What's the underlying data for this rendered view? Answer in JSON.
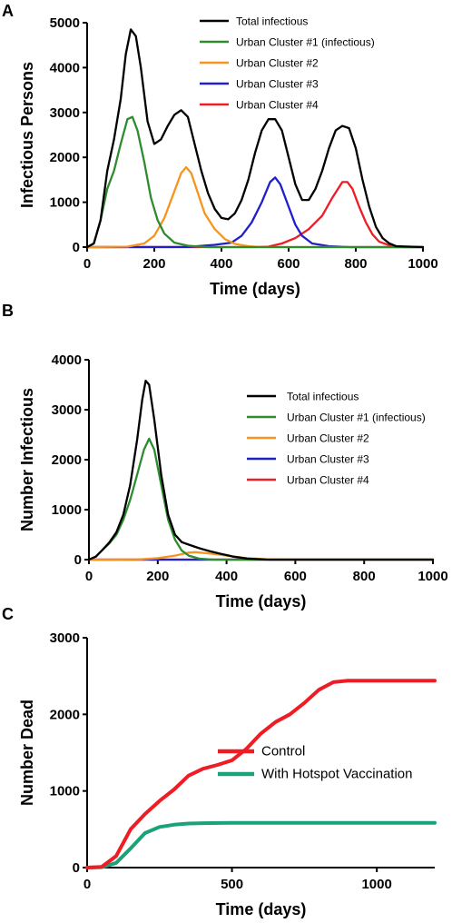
{
  "panels": [
    {
      "letter": "A",
      "xlabel": "Time (days)",
      "ylabel": "Infectious Persons"
    },
    {
      "letter": "B",
      "xlabel": "Time (days)",
      "ylabel": "Number Infectious"
    },
    {
      "letter": "C",
      "xlabel": "Time (days)",
      "ylabel": "Number Dead"
    }
  ],
  "chart_data": [
    {
      "type": "line",
      "panel": "A",
      "xlabel": "Time (days)",
      "ylabel": "Infectious Persons",
      "xlim": [
        0,
        1000
      ],
      "ylim": [
        0,
        5000
      ],
      "xticks": [
        0,
        200,
        400,
        600,
        800,
        1000
      ],
      "yticks": [
        0,
        1000,
        2000,
        3000,
        4000,
        5000
      ],
      "legend_position": "top-right",
      "series": [
        {
          "name": "Total infectious",
          "color": "#000000",
          "points": [
            [
              0,
              0
            ],
            [
              20,
              80
            ],
            [
              40,
              600
            ],
            [
              60,
              1700
            ],
            [
              80,
              2400
            ],
            [
              100,
              3300
            ],
            [
              115,
              4300
            ],
            [
              130,
              4850
            ],
            [
              145,
              4700
            ],
            [
              160,
              4000
            ],
            [
              180,
              2800
            ],
            [
              200,
              2300
            ],
            [
              220,
              2400
            ],
            [
              240,
              2700
            ],
            [
              260,
              2950
            ],
            [
              280,
              3050
            ],
            [
              300,
              2900
            ],
            [
              320,
              2300
            ],
            [
              340,
              1700
            ],
            [
              360,
              1200
            ],
            [
              380,
              850
            ],
            [
              400,
              650
            ],
            [
              420,
              620
            ],
            [
              440,
              750
            ],
            [
              460,
              1050
            ],
            [
              480,
              1500
            ],
            [
              500,
              2100
            ],
            [
              520,
              2600
            ],
            [
              540,
              2850
            ],
            [
              560,
              2850
            ],
            [
              580,
              2600
            ],
            [
              600,
              2000
            ],
            [
              620,
              1400
            ],
            [
              640,
              1050
            ],
            [
              660,
              1050
            ],
            [
              680,
              1300
            ],
            [
              700,
              1700
            ],
            [
              720,
              2200
            ],
            [
              740,
              2600
            ],
            [
              760,
              2700
            ],
            [
              780,
              2650
            ],
            [
              800,
              2200
            ],
            [
              820,
              1500
            ],
            [
              840,
              900
            ],
            [
              860,
              450
            ],
            [
              880,
              200
            ],
            [
              900,
              80
            ],
            [
              920,
              20
            ],
            [
              1000,
              0
            ]
          ]
        },
        {
          "name": "Urban Cluster #1 (infectious)",
          "color": "#2e8b2e",
          "points": [
            [
              0,
              0
            ],
            [
              20,
              80
            ],
            [
              40,
              600
            ],
            [
              60,
              1300
            ],
            [
              80,
              1700
            ],
            [
              100,
              2300
            ],
            [
              120,
              2850
            ],
            [
              135,
              2900
            ],
            [
              150,
              2600
            ],
            [
              170,
              1900
            ],
            [
              190,
              1100
            ],
            [
              210,
              600
            ],
            [
              230,
              300
            ],
            [
              260,
              100
            ],
            [
              300,
              30
            ],
            [
              360,
              0
            ],
            [
              1000,
              0
            ]
          ]
        },
        {
          "name": "Urban Cluster #2",
          "color": "#f7941d",
          "points": [
            [
              0,
              0
            ],
            [
              120,
              10
            ],
            [
              170,
              80
            ],
            [
              200,
              250
            ],
            [
              230,
              650
            ],
            [
              255,
              1150
            ],
            [
              280,
              1650
            ],
            [
              295,
              1780
            ],
            [
              310,
              1650
            ],
            [
              330,
              1200
            ],
            [
              350,
              750
            ],
            [
              380,
              400
            ],
            [
              410,
              180
            ],
            [
              440,
              70
            ],
            [
              480,
              20
            ],
            [
              520,
              0
            ],
            [
              1000,
              0
            ]
          ]
        },
        {
          "name": "Urban Cluster #3",
          "color": "#1f1fcc",
          "points": [
            [
              0,
              0
            ],
            [
              300,
              5
            ],
            [
              380,
              50
            ],
            [
              430,
              100
            ],
            [
              460,
              250
            ],
            [
              490,
              550
            ],
            [
              520,
              1000
            ],
            [
              545,
              1450
            ],
            [
              560,
              1550
            ],
            [
              575,
              1400
            ],
            [
              600,
              900
            ],
            [
              620,
              500
            ],
            [
              640,
              250
            ],
            [
              670,
              80
            ],
            [
              720,
              20
            ],
            [
              780,
              0
            ],
            [
              1000,
              0
            ]
          ]
        },
        {
          "name": "Urban Cluster #4",
          "color": "#ee1c24",
          "points": [
            [
              0,
              0
            ],
            [
              500,
              0
            ],
            [
              540,
              10
            ],
            [
              580,
              80
            ],
            [
              620,
              200
            ],
            [
              660,
              400
            ],
            [
              700,
              700
            ],
            [
              730,
              1100
            ],
            [
              760,
              1450
            ],
            [
              775,
              1450
            ],
            [
              790,
              1300
            ],
            [
              810,
              900
            ],
            [
              830,
              550
            ],
            [
              850,
              280
            ],
            [
              870,
              120
            ],
            [
              900,
              40
            ],
            [
              940,
              0
            ],
            [
              1000,
              0
            ]
          ]
        }
      ]
    },
    {
      "type": "line",
      "panel": "B",
      "xlabel": "Time (days)",
      "ylabel": "Number Infectious",
      "xlim": [
        0,
        1000
      ],
      "ylim": [
        0,
        4000
      ],
      "xticks": [
        0,
        200,
        400,
        600,
        800,
        1000
      ],
      "yticks": [
        0,
        1000,
        2000,
        3000,
        4000
      ],
      "legend_position": "right",
      "series": [
        {
          "name": "Total infectious",
          "color": "#000000",
          "points": [
            [
              0,
              0
            ],
            [
              20,
              60
            ],
            [
              40,
              200
            ],
            [
              60,
              350
            ],
            [
              80,
              550
            ],
            [
              100,
              900
            ],
            [
              120,
              1500
            ],
            [
              140,
              2400
            ],
            [
              155,
              3200
            ],
            [
              165,
              3580
            ],
            [
              175,
              3500
            ],
            [
              190,
              2800
            ],
            [
              210,
              1700
            ],
            [
              230,
              900
            ],
            [
              250,
              500
            ],
            [
              270,
              350
            ],
            [
              290,
              300
            ],
            [
              320,
              230
            ],
            [
              350,
              170
            ],
            [
              380,
              120
            ],
            [
              420,
              60
            ],
            [
              460,
              20
            ],
            [
              520,
              0
            ],
            [
              1000,
              0
            ]
          ]
        },
        {
          "name": "Urban Cluster #1 (infectious)",
          "color": "#2e8b2e",
          "points": [
            [
              0,
              0
            ],
            [
              20,
              60
            ],
            [
              40,
              200
            ],
            [
              60,
              330
            ],
            [
              80,
              500
            ],
            [
              100,
              800
            ],
            [
              120,
              1200
            ],
            [
              140,
              1700
            ],
            [
              160,
              2200
            ],
            [
              175,
              2420
            ],
            [
              190,
              2200
            ],
            [
              210,
              1500
            ],
            [
              230,
              800
            ],
            [
              250,
              400
            ],
            [
              270,
              180
            ],
            [
              290,
              80
            ],
            [
              320,
              20
            ],
            [
              360,
              0
            ],
            [
              1000,
              0
            ]
          ]
        },
        {
          "name": "Urban Cluster #2",
          "color": "#f7941d",
          "points": [
            [
              0,
              0
            ],
            [
              150,
              5
            ],
            [
              200,
              30
            ],
            [
              250,
              80
            ],
            [
              290,
              140
            ],
            [
              310,
              150
            ],
            [
              340,
              130
            ],
            [
              380,
              100
            ],
            [
              420,
              60
            ],
            [
              460,
              30
            ],
            [
              520,
              5
            ],
            [
              600,
              0
            ],
            [
              1000,
              0
            ]
          ]
        },
        {
          "name": "Urban Cluster #3",
          "color": "#1f1fcc",
          "points": [
            [
              0,
              0
            ],
            [
              1000,
              0
            ]
          ]
        },
        {
          "name": "Urban Cluster #4",
          "color": "#ee1c24",
          "points": [
            [
              0,
              0
            ],
            [
              1000,
              0
            ]
          ]
        }
      ]
    },
    {
      "type": "line",
      "panel": "C",
      "xlabel": "Time (days)",
      "ylabel": "Number Dead",
      "xlim": [
        0,
        1200
      ],
      "ylim": [
        0,
        3000
      ],
      "xticks": [
        0,
        500,
        1000
      ],
      "yticks": [
        0,
        1000,
        2000,
        3000
      ],
      "legend_position": "center-right",
      "series": [
        {
          "name": "Control",
          "color": "#ee1c24",
          "points": [
            [
              0,
              0
            ],
            [
              50,
              10
            ],
            [
              100,
              150
            ],
            [
              150,
              500
            ],
            [
              200,
              700
            ],
            [
              250,
              870
            ],
            [
              300,
              1020
            ],
            [
              350,
              1200
            ],
            [
              400,
              1290
            ],
            [
              450,
              1340
            ],
            [
              500,
              1400
            ],
            [
              550,
              1550
            ],
            [
              600,
              1750
            ],
            [
              650,
              1900
            ],
            [
              700,
              2000
            ],
            [
              750,
              2150
            ],
            [
              800,
              2320
            ],
            [
              850,
              2420
            ],
            [
              900,
              2440
            ],
            [
              1200,
              2440
            ]
          ]
        },
        {
          "name": "With Hotspot Vaccination",
          "color": "#1aa37a",
          "points": [
            [
              0,
              0
            ],
            [
              50,
              5
            ],
            [
              100,
              60
            ],
            [
              150,
              250
            ],
            [
              200,
              450
            ],
            [
              250,
              530
            ],
            [
              300,
              560
            ],
            [
              350,
              575
            ],
            [
              400,
              580
            ],
            [
              500,
              585
            ],
            [
              1200,
              585
            ]
          ]
        }
      ]
    }
  ]
}
